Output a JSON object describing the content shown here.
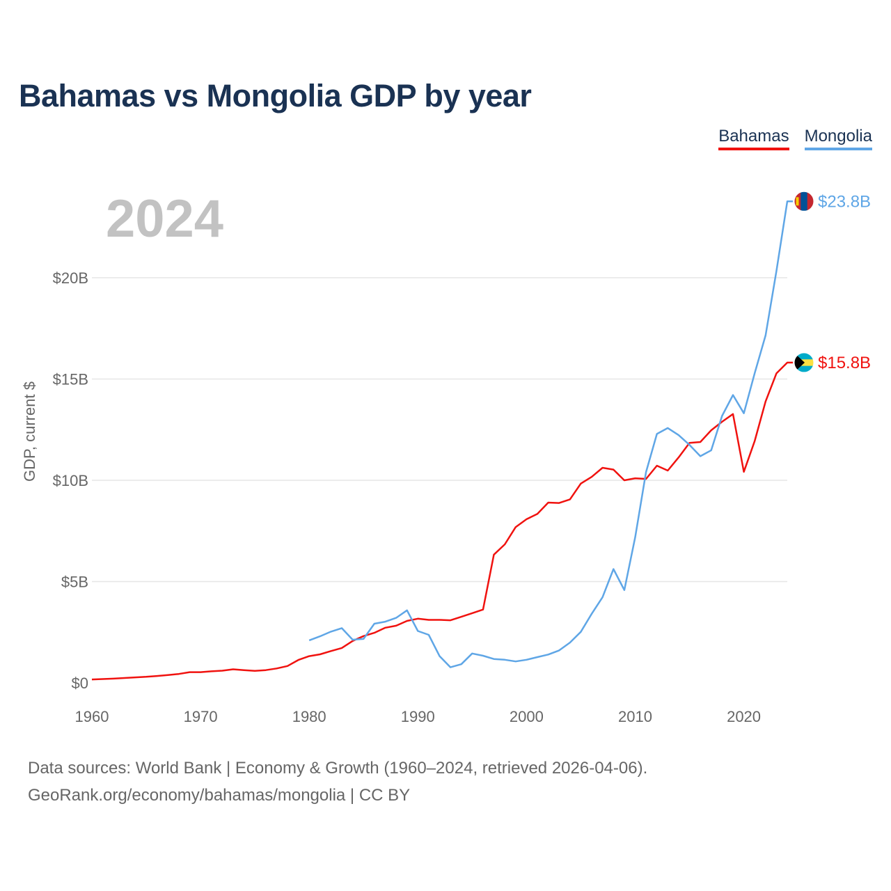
{
  "page": {
    "title": "Bahamas vs Mongolia GDP by year",
    "footer_line1": "Data sources: World Bank | Economy & Growth (1960–2024, retrieved 2026-04-06).",
    "footer_line2": "GeoRank.org/economy/bahamas/mongolia | CC BY"
  },
  "legend": [
    {
      "name": "Bahamas",
      "color": "#f0120f"
    },
    {
      "name": "Mongolia",
      "color": "#5fa6e6"
    }
  ],
  "chart_data": {
    "type": "line",
    "title": "Bahamas vs Mongolia GDP by year",
    "xlabel": "",
    "ylabel": "GDP, current $",
    "year_label": "2024",
    "xlim": [
      1960,
      2024
    ],
    "ylim": [
      0,
      24
    ],
    "x_ticks": [
      1960,
      1970,
      1980,
      1990,
      2000,
      2010,
      2020
    ],
    "y_ticks": [
      {
        "value": 0,
        "label": "$0"
      },
      {
        "value": 5,
        "label": "$5B"
      },
      {
        "value": 10,
        "label": "$10B"
      },
      {
        "value": 15,
        "label": "$15B"
      },
      {
        "value": 20,
        "label": "$20B"
      }
    ],
    "grid": true,
    "series": [
      {
        "name": "Bahamas",
        "color": "#f0120f",
        "end_label": "$15.8B",
        "flag": "bahamas-flag-icon",
        "x": [
          1960,
          1961,
          1962,
          1963,
          1964,
          1965,
          1966,
          1967,
          1968,
          1969,
          1970,
          1971,
          1972,
          1973,
          1974,
          1975,
          1976,
          1977,
          1978,
          1979,
          1980,
          1981,
          1982,
          1983,
          1984,
          1985,
          1986,
          1987,
          1988,
          1989,
          1990,
          1991,
          1992,
          1993,
          1994,
          1995,
          1996,
          1997,
          1998,
          1999,
          2000,
          2001,
          2002,
          2003,
          2004,
          2005,
          2006,
          2007,
          2008,
          2009,
          2010,
          2011,
          2012,
          2013,
          2014,
          2015,
          2016,
          2017,
          2018,
          2019,
          2020,
          2021,
          2022,
          2023,
          2024
        ],
        "values": [
          0.17,
          0.19,
          0.21,
          0.24,
          0.27,
          0.3,
          0.34,
          0.39,
          0.44,
          0.53,
          0.53,
          0.57,
          0.6,
          0.67,
          0.63,
          0.59,
          0.63,
          0.71,
          0.83,
          1.13,
          1.32,
          1.41,
          1.57,
          1.72,
          2.07,
          2.31,
          2.47,
          2.72,
          2.82,
          3.06,
          3.17,
          3.11,
          3.11,
          3.09,
          3.26,
          3.44,
          3.62,
          6.33,
          6.84,
          7.69,
          8.08,
          8.34,
          8.9,
          8.88,
          9.06,
          9.84,
          10.17,
          10.62,
          10.53,
          10.0,
          10.1,
          10.07,
          10.72,
          10.48,
          11.13,
          11.85,
          11.89,
          12.47,
          12.89,
          13.27,
          10.42,
          11.94,
          13.89,
          15.28,
          15.81
        ]
      },
      {
        "name": "Mongolia",
        "color": "#5fa6e6",
        "end_label": "$23.8B",
        "flag": "mongolia-flag-icon",
        "x": [
          1980,
          1981,
          1982,
          1983,
          1984,
          1985,
          1986,
          1987,
          1988,
          1989,
          1990,
          1991,
          1992,
          1993,
          1994,
          1995,
          1996,
          1997,
          1998,
          1999,
          2000,
          2001,
          2002,
          2003,
          2004,
          2005,
          2006,
          2007,
          2008,
          2009,
          2010,
          2011,
          2012,
          2013,
          2014,
          2015,
          2016,
          2017,
          2018,
          2019,
          2020,
          2021,
          2022,
          2023,
          2024
        ],
        "values": [
          2.1,
          2.3,
          2.53,
          2.7,
          2.13,
          2.17,
          2.92,
          3.02,
          3.21,
          3.58,
          2.56,
          2.37,
          1.32,
          0.77,
          0.92,
          1.45,
          1.34,
          1.18,
          1.14,
          1.06,
          1.14,
          1.27,
          1.4,
          1.6,
          1.99,
          2.52,
          3.41,
          4.23,
          5.62,
          4.58,
          7.19,
          10.41,
          12.29,
          12.58,
          12.23,
          11.75,
          11.19,
          11.48,
          13.18,
          14.21,
          13.31,
          15.29,
          17.15,
          20.33,
          23.77
        ]
      }
    ]
  }
}
